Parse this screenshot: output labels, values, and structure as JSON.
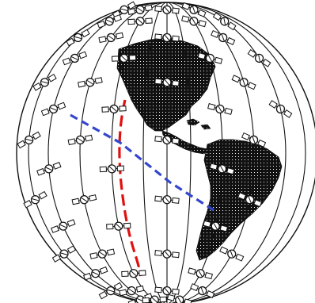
{
  "figure": {
    "colors": {
      "background": "#ffffff",
      "land": "#111111",
      "orbits": "#111111",
      "satellite": "#111111",
      "satellite_panel": "#ffffff",
      "path_link_red": "#e01010",
      "path_link_blue": "#3347cc"
    },
    "counts": {
      "orbital_planes": 9,
      "satellites_shown": 52
    },
    "icons": [
      "satellite-icon",
      "globe-icon"
    ],
    "links": [
      {
        "name": "red-inter-satellite-link",
        "style": "dashed",
        "color_key": "path_link_red"
      },
      {
        "name": "blue-ground-satellite-link",
        "style": "dashed",
        "color_key": "path_link_blue"
      }
    ]
  }
}
